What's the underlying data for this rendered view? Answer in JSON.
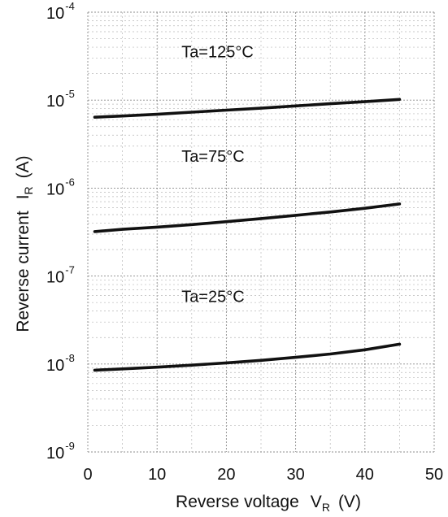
{
  "chart_data": {
    "type": "line",
    "xlabel": "Reverse voltage",
    "xlabel_symbol": "V",
    "xlabel_symbol_sub": "R",
    "xlabel_unit": "(V)",
    "ylabel": "Reverse current",
    "ylabel_symbol": "I",
    "ylabel_symbol_sub": "R",
    "ylabel_unit": "(A)",
    "xlim": [
      0,
      50
    ],
    "ylim": [
      1e-09,
      0.0001
    ],
    "yscale": "log",
    "grid": true,
    "x_ticks": [
      {
        "value": 0,
        "label": "0"
      },
      {
        "value": 10,
        "label": "10"
      },
      {
        "value": 20,
        "label": "20"
      },
      {
        "value": 30,
        "label": "30"
      },
      {
        "value": 40,
        "label": "40"
      },
      {
        "value": 50,
        "label": "50"
      }
    ],
    "y_ticks": [
      {
        "value": 0.0001,
        "base": "10",
        "exp": "-4"
      },
      {
        "value": 1e-05,
        "base": "10",
        "exp": "-5"
      },
      {
        "value": 1e-06,
        "base": "10",
        "exp": "-6"
      },
      {
        "value": 1e-07,
        "base": "10",
        "exp": "-7"
      },
      {
        "value": 1e-08,
        "base": "10",
        "exp": "-8"
      },
      {
        "value": 1e-09,
        "base": "10",
        "exp": "-9"
      }
    ],
    "series": [
      {
        "name": "Ta=125°C",
        "x": [
          1,
          5,
          10,
          15,
          20,
          25,
          30,
          35,
          40,
          45
        ],
        "values": [
          6.4e-06,
          6.6e-06,
          6.9e-06,
          7.3e-06,
          7.7e-06,
          8.1e-06,
          8.6e-06,
          9.1e-06,
          9.6e-06,
          1.02e-05
        ]
      },
      {
        "name": "Ta=75°C",
        "x": [
          1,
          5,
          10,
          15,
          20,
          25,
          30,
          35,
          40,
          45
        ],
        "values": [
          3.2e-07,
          3.4e-07,
          3.6e-07,
          3.85e-07,
          4.15e-07,
          4.5e-07,
          4.9e-07,
          5.35e-07,
          5.9e-07,
          6.6e-07
        ]
      },
      {
        "name": "Ta=25°C",
        "x": [
          1,
          5,
          10,
          15,
          20,
          25,
          30,
          35,
          40,
          45
        ],
        "values": [
          8.5e-09,
          8.8e-09,
          9.2e-09,
          9.7e-09,
          1.03e-08,
          1.1e-08,
          1.19e-08,
          1.3e-08,
          1.45e-08,
          1.68e-08
        ]
      }
    ]
  }
}
